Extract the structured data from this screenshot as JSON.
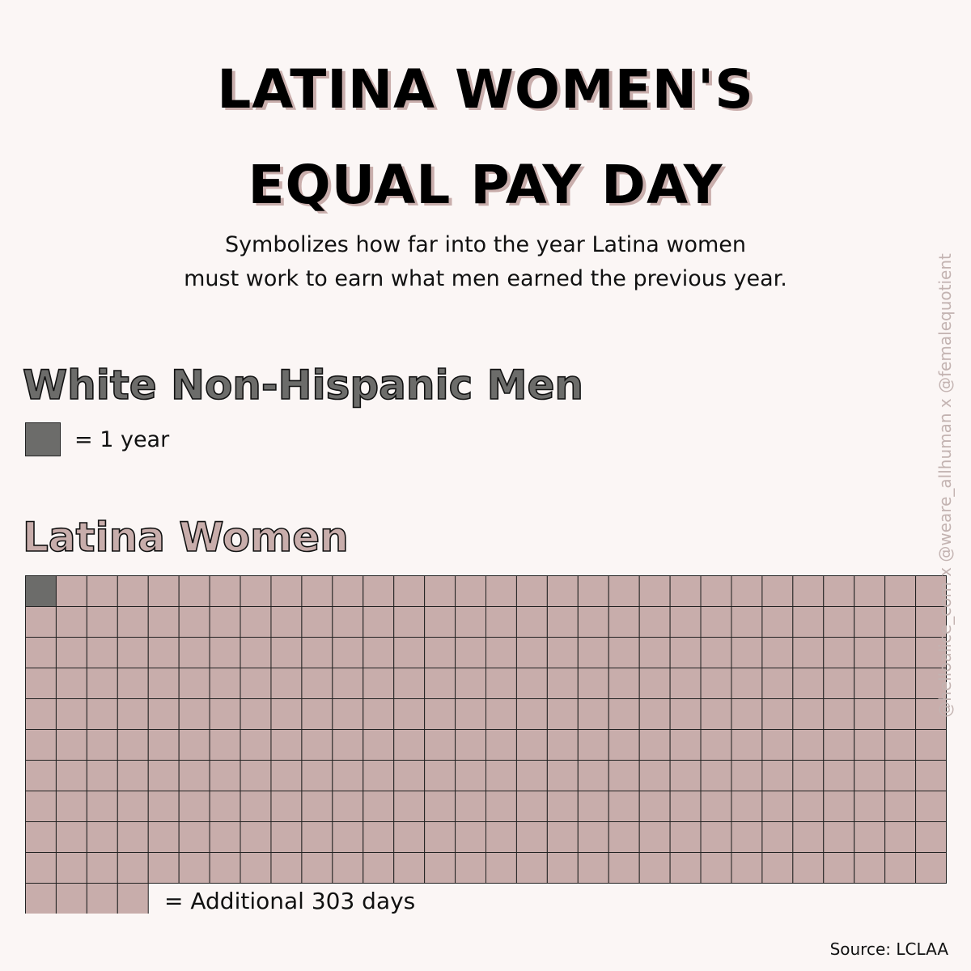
{
  "title": {
    "line1": "LATINA WOMEN'S",
    "line2": "EQUAL PAY DAY"
  },
  "subtitle": {
    "line1": "Symbolizes how far into the year Latina women",
    "line2": "must work to earn what men earned the previous year."
  },
  "men_section": {
    "heading": "White Non-Hispanic Men",
    "legend_label": "= 1 year"
  },
  "women_section": {
    "heading": "Latina Women",
    "additional_label": "= Additional 303 days"
  },
  "source": "Source: LCLAA",
  "watermark": "@helloalice_com x @weare_allhuman x @femalequotient",
  "colors": {
    "background": "#fbf6f5",
    "men_gray": "#6c6c6a",
    "women_pink": "#c8adab",
    "grid_line": "#222222"
  },
  "waffle": {
    "full_rows": 10,
    "columns": 30,
    "partial_row_cells": 4,
    "first_cell": "men-year"
  }
}
